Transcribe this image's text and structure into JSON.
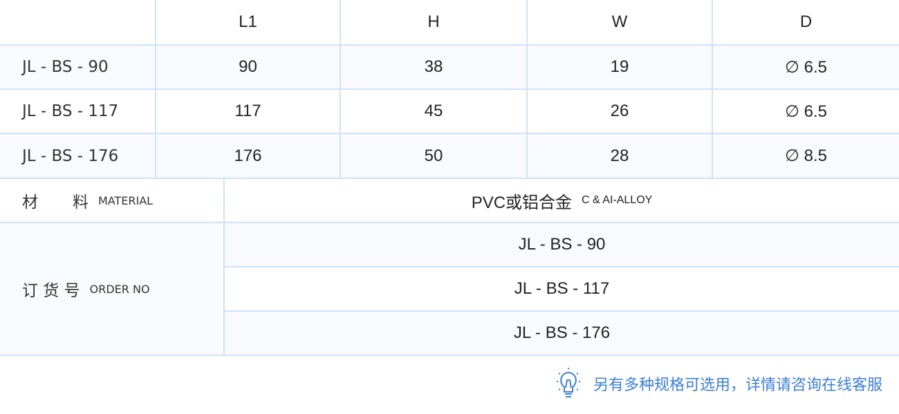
{
  "headers": [
    "",
    "L1",
    "H",
    "W",
    "D"
  ],
  "rows": [
    {
      "model": "JL - BS - 90",
      "L1": "90",
      "H": "38",
      "W": "19",
      "D": "∅ 6.5"
    },
    {
      "model": "JL - BS - 117",
      "L1": "117",
      "H": "45",
      "W": "26",
      "D": "∅ 6.5"
    },
    {
      "model": "JL - BS - 176",
      "L1": "176",
      "H": "50",
      "W": "28",
      "D": "∅ 8.5"
    }
  ],
  "material": {
    "label_cn1": "材",
    "label_cn2": "料",
    "label_en": "MATERIAL",
    "value_cn": "PVC或铝合金",
    "value_en": "C & AI-ALLOY"
  },
  "order": {
    "label_cn": "订 货 号",
    "label_en": "ORDER NO",
    "values": [
      "JL - BS - 90",
      "JL - BS - 117",
      "JL - BS - 176"
    ]
  },
  "note": {
    "icon": "lightbulb-icon",
    "text": "另有多种规格可选用，详情请咨询在线客服",
    "color": "#3c7ed8"
  }
}
